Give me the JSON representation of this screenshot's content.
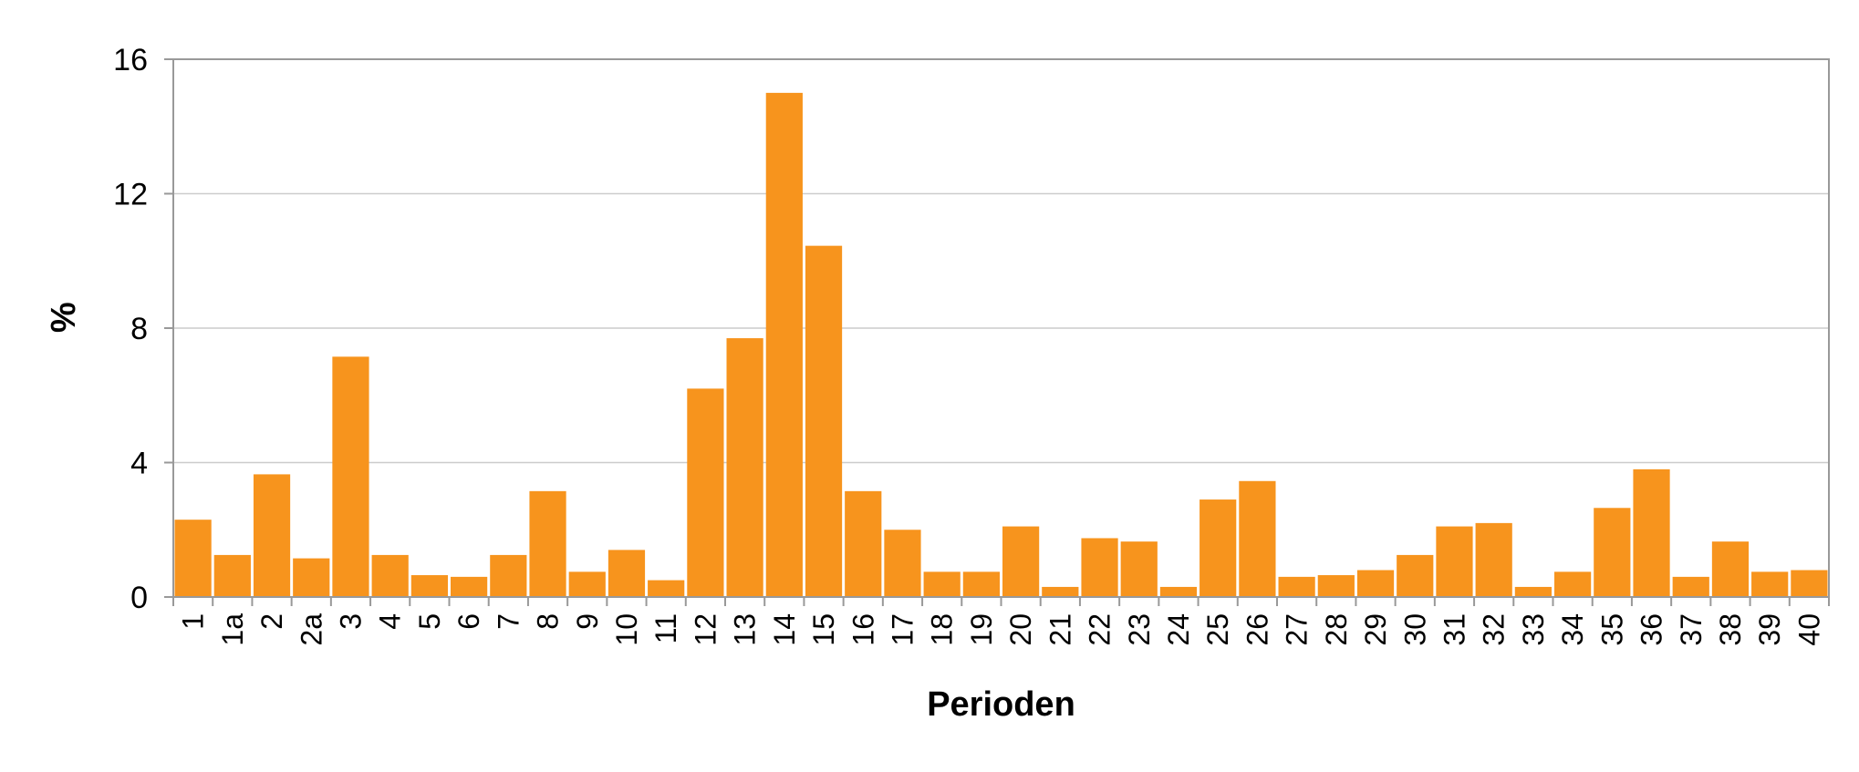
{
  "chart_data": {
    "type": "bar",
    "title": "",
    "xlabel": "Perioden",
    "ylabel": "%",
    "ylim": [
      0,
      16
    ],
    "yticks": [
      "0",
      "4",
      "8",
      "12",
      "16"
    ],
    "grid": true,
    "bar_color": "#f7941d",
    "categories": [
      "1",
      "1a",
      "2",
      "2a",
      "3",
      "4",
      "5",
      "6",
      "7",
      "8",
      "9",
      "10",
      "11",
      "12",
      "13",
      "14",
      "15",
      "16",
      "17",
      "18",
      "19",
      "20",
      "21",
      "22",
      "23",
      "24",
      "25",
      "26",
      "27",
      "28",
      "29",
      "30",
      "31",
      "32",
      "33",
      "34",
      "35",
      "36",
      "37",
      "38",
      "39",
      "40"
    ],
    "values": [
      2.3,
      1.25,
      3.65,
      1.15,
      7.15,
      1.25,
      0.65,
      0.6,
      1.25,
      3.15,
      0.75,
      1.4,
      0.5,
      6.2,
      7.7,
      15.0,
      10.45,
      3.15,
      2.0,
      0.75,
      0.75,
      2.1,
      0.3,
      1.75,
      1.65,
      0.3,
      2.9,
      3.45,
      0.6,
      0.65,
      0.8,
      1.25,
      2.1,
      2.2,
      0.3,
      0.75,
      2.65,
      3.8,
      0.6,
      1.65,
      0.75,
      0.8
    ]
  }
}
